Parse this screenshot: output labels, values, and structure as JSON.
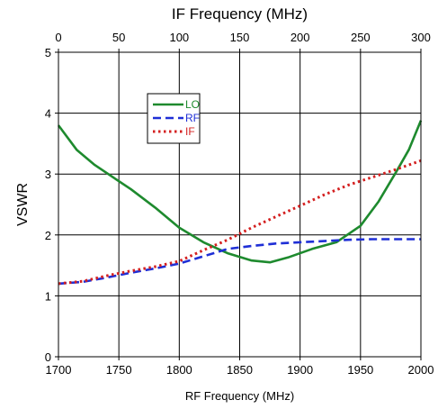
{
  "chart_data": {
    "type": "line",
    "title": "",
    "top_axis": {
      "label": "IF Frequency (MHz)",
      "range": [
        0,
        300
      ],
      "ticks": [
        0,
        50,
        100,
        150,
        200,
        250,
        300
      ]
    },
    "x_axis": {
      "label": "RF Frequency (MHz)",
      "range": [
        1700,
        2000
      ],
      "ticks": [
        1700,
        1750,
        1800,
        1850,
        1900,
        1950,
        2000
      ]
    },
    "y_axis": {
      "label": "VSWR",
      "range": [
        0,
        5
      ],
      "ticks": [
        0,
        1,
        2,
        3,
        4,
        5
      ]
    },
    "grid": true,
    "legend": {
      "placement": "top-left-inside"
    },
    "series": [
      {
        "name": "LO",
        "color": "#1e8a2e",
        "style": "solid",
        "axis": "bottom",
        "x": [
          1700,
          1715,
          1730,
          1745,
          1760,
          1780,
          1800,
          1820,
          1840,
          1860,
          1875,
          1890,
          1910,
          1930,
          1950,
          1965,
          1980,
          1990,
          2000
        ],
        "y": [
          3.8,
          3.4,
          3.15,
          2.95,
          2.75,
          2.45,
          2.12,
          1.88,
          1.7,
          1.58,
          1.55,
          1.63,
          1.77,
          1.88,
          2.15,
          2.55,
          3.05,
          3.4,
          3.88
        ]
      },
      {
        "name": "RF",
        "color": "#1f2fd6",
        "style": "dashed",
        "axis": "bottom",
        "x": [
          1700,
          1720,
          1740,
          1760,
          1780,
          1800,
          1820,
          1840,
          1860,
          1880,
          1900,
          1920,
          1940,
          1960,
          1980,
          2000
        ],
        "y": [
          1.2,
          1.23,
          1.3,
          1.38,
          1.45,
          1.53,
          1.65,
          1.77,
          1.82,
          1.86,
          1.88,
          1.9,
          1.92,
          1.93,
          1.93,
          1.93
        ]
      },
      {
        "name": "IF",
        "color": "#d42020",
        "style": "dotted",
        "axis": "top",
        "x": [
          0,
          20,
          40,
          60,
          80,
          100,
          120,
          140,
          160,
          180,
          200,
          220,
          240,
          260,
          280,
          300
        ],
        "y": [
          1.2,
          1.24,
          1.33,
          1.41,
          1.48,
          1.57,
          1.75,
          1.92,
          2.12,
          2.3,
          2.48,
          2.66,
          2.82,
          2.95,
          3.08,
          3.22
        ]
      }
    ]
  }
}
